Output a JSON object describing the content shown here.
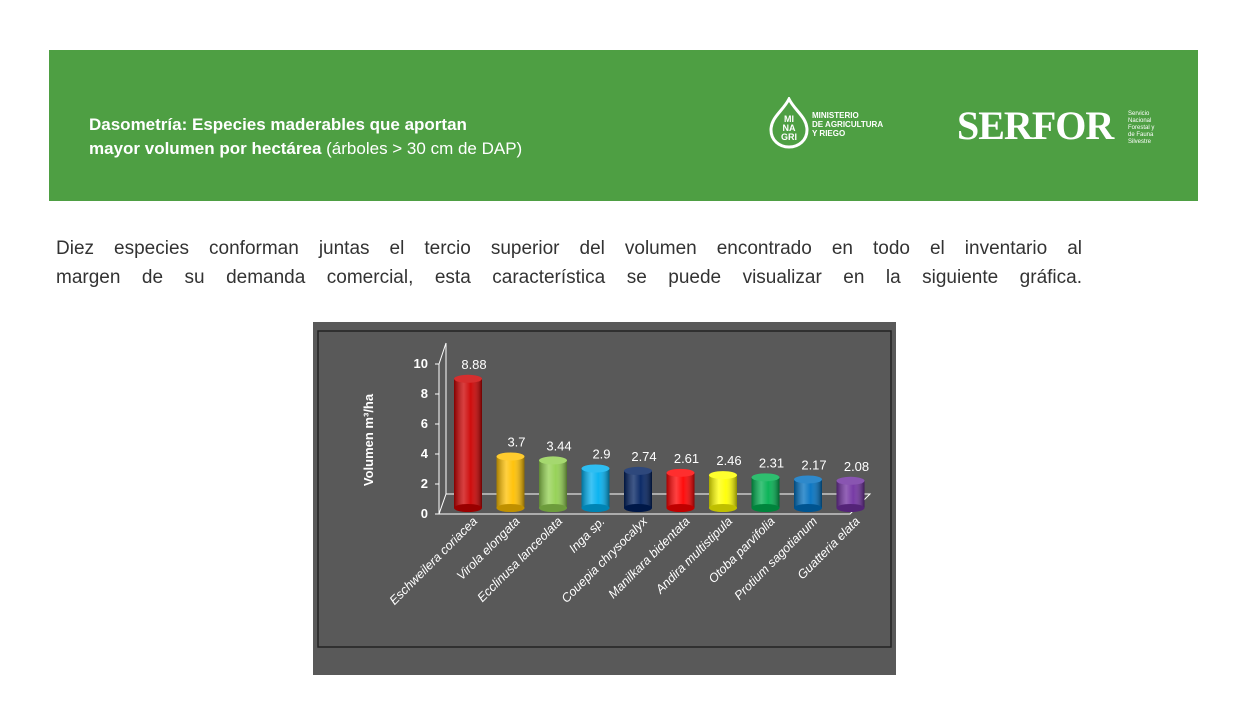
{
  "header": {
    "title_bold_1": "Dasometría: Especies maderables que aportan",
    "title_bold_2": "mayor volumen por hectárea",
    "title_normal": " (árboles > 30 cm de DAP)",
    "minagri_mark": [
      "MI",
      "NA",
      "GRI"
    ],
    "minagri_text": [
      "MINISTERIO",
      "DE AGRICULTURA",
      "Y RIEGO"
    ],
    "serfor": "SERFOR",
    "serfor_sub": [
      "Servicio",
      "Nacional",
      "Forestal y",
      "de Fauna",
      "Silvestre"
    ]
  },
  "paragraph": {
    "line1": "Diez especies conforman juntas el tercio superior del volumen encontrado en todo el inventario al",
    "line2": "margen de su demanda comercial, esta característica se puede visualizar en la siguiente gráfica."
  },
  "colors": {
    "banner": "#4e9f43",
    "chart_bg": "#595959"
  },
  "chart_data": {
    "type": "bar",
    "ylabel": "Volumen m³/ha",
    "ylim": [
      0,
      10
    ],
    "yticks": [
      0,
      2,
      4,
      6,
      8,
      10
    ],
    "grid": false,
    "legend": "none",
    "categories": [
      "Eschweilera coriacea",
      "Virola elongata",
      "Ecclinusa lanceolata",
      "Inga sp.",
      "Couepia chrysocalyx",
      "Manilkara bidentata",
      "Andira multistipula",
      "Otoba parvifolia",
      "Protium sagotianum",
      "Guatteria elata"
    ],
    "values": [
      8.88,
      3.7,
      3.44,
      2.9,
      2.74,
      2.61,
      2.46,
      2.31,
      2.17,
      2.08
    ],
    "value_labels": [
      "8.88",
      "3.7",
      "3.44",
      "2.9",
      "2.74",
      "2.61",
      "2.46",
      "2.31",
      "2.17",
      "2.08"
    ],
    "bar_colors": [
      "#cc0000",
      "#ffc000",
      "#92d050",
      "#00b0f0",
      "#002060",
      "#ff0000",
      "#ffff00",
      "#00b050",
      "#0070c0",
      "#7030a0"
    ]
  }
}
